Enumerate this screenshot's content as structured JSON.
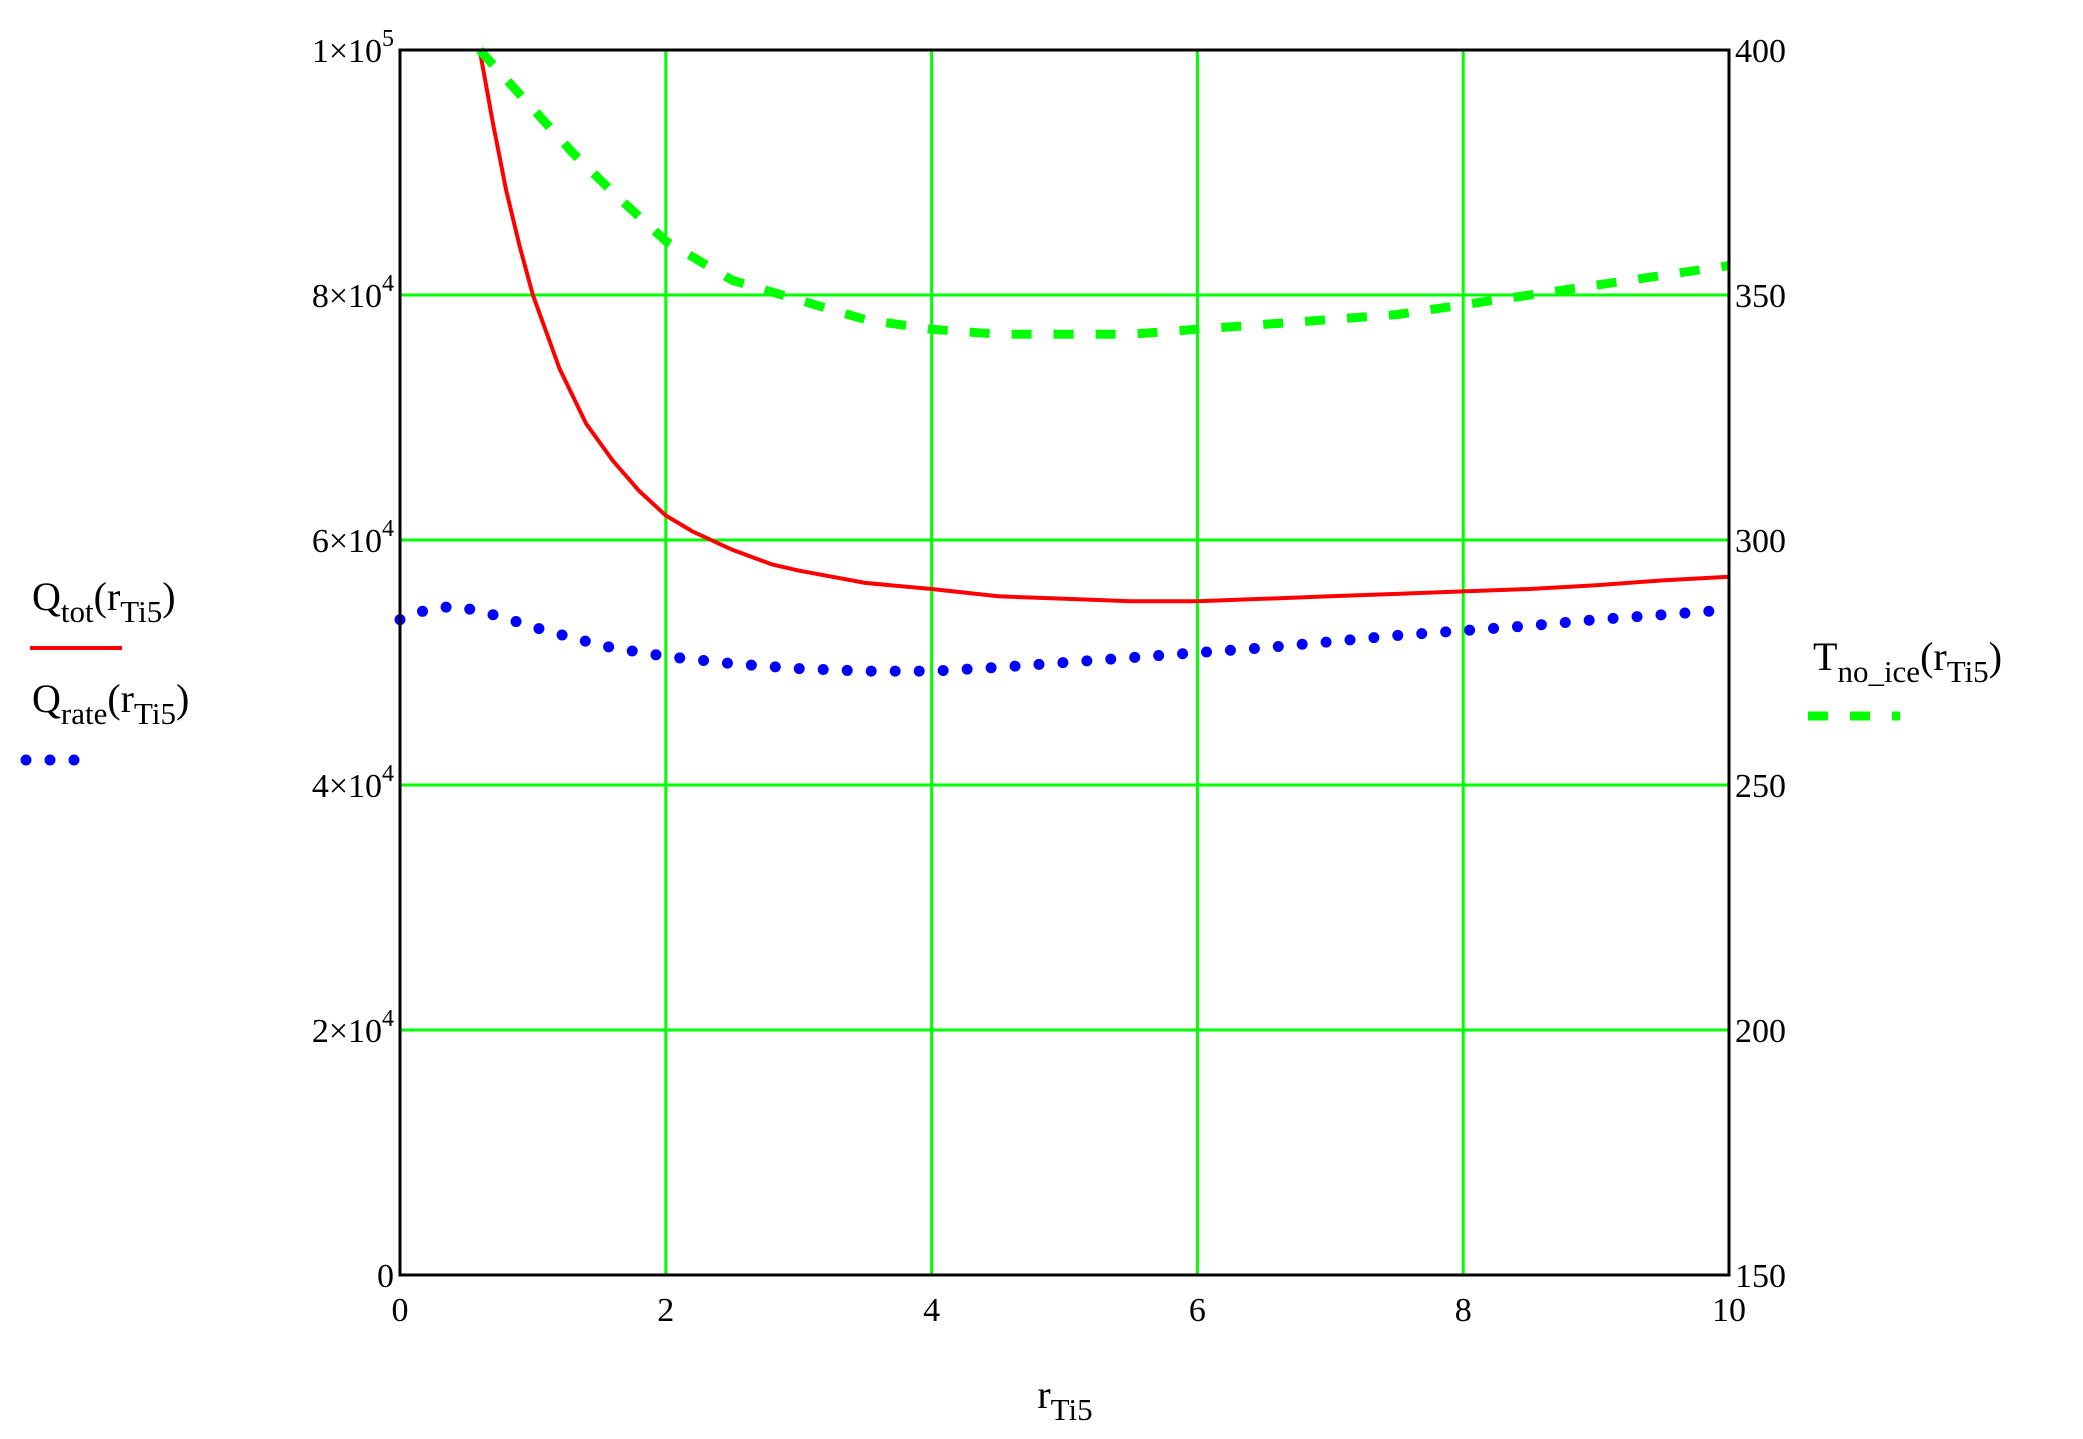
{
  "chart_data": {
    "type": "line",
    "xlabel": {
      "base": "r",
      "sub": "Ti5"
    },
    "xlim": [
      0,
      10
    ],
    "ylim_left": [
      0,
      100000
    ],
    "ylim_right": [
      150,
      400
    ],
    "grid": true,
    "x_ticks": [
      {
        "value": 0,
        "label": "0"
      },
      {
        "value": 2,
        "label": "2"
      },
      {
        "value": 4,
        "label": "4"
      },
      {
        "value": 6,
        "label": "6"
      },
      {
        "value": 8,
        "label": "8"
      },
      {
        "value": 10,
        "label": "10"
      }
    ],
    "y_left_ticks": [
      {
        "value": 0,
        "mant": "0",
        "exp": ""
      },
      {
        "value": 20000,
        "mant": "2×10",
        "exp": "4"
      },
      {
        "value": 40000,
        "mant": "4×10",
        "exp": "4"
      },
      {
        "value": 60000,
        "mant": "6×10",
        "exp": "4"
      },
      {
        "value": 80000,
        "mant": "8×10",
        "exp": "4"
      },
      {
        "value": 100000,
        "mant": "1×10",
        "exp": "5"
      }
    ],
    "y_right_ticks": [
      {
        "value": 150,
        "label": "150"
      },
      {
        "value": 200,
        "label": "200"
      },
      {
        "value": 250,
        "label": "250"
      },
      {
        "value": 300,
        "label": "300"
      },
      {
        "value": 350,
        "label": "350"
      },
      {
        "value": 400,
        "label": "400"
      }
    ],
    "series": [
      {
        "name": {
          "base": "Q",
          "sub": "tot",
          "arg": "r",
          "argsub": "Ti5"
        },
        "axis": "left",
        "color": "#ff0000",
        "style": "solid",
        "x": [
          0.6,
          0.7,
          0.8,
          0.9,
          1.0,
          1.2,
          1.4,
          1.6,
          1.8,
          2.0,
          2.2,
          2.5,
          2.8,
          3.0,
          3.5,
          4.0,
          4.5,
          5.0,
          5.5,
          6.0,
          6.5,
          7.0,
          7.5,
          8.0,
          8.5,
          9.0,
          9.5,
          10.0
        ],
        "y": [
          100000,
          94000,
          88500,
          84000,
          80000,
          74000,
          69500,
          66500,
          64000,
          62000,
          60700,
          59200,
          58000,
          57500,
          56500,
          56000,
          55400,
          55200,
          55000,
          55000,
          55200,
          55400,
          55600,
          55800,
          56000,
          56300,
          56700,
          57000
        ]
      },
      {
        "name": {
          "base": "Q",
          "sub": "rate",
          "arg": "r",
          "argsub": "Ti5"
        },
        "axis": "left",
        "color": "#0000ff",
        "style": "dotted",
        "x": [
          0.0,
          0.2,
          0.4,
          0.6,
          0.8,
          1.0,
          1.3,
          1.6,
          2.0,
          2.5,
          3.0,
          3.5,
          4.0,
          4.5,
          5.0,
          5.5,
          6.0,
          6.5,
          7.0,
          7.5,
          8.0,
          8.5,
          9.0,
          9.5,
          10.0
        ],
        "y": [
          53500,
          54300,
          54600,
          54200,
          53600,
          52900,
          52000,
          51200,
          50500,
          49900,
          49500,
          49300,
          49300,
          49600,
          50000,
          50400,
          50800,
          51200,
          51700,
          52200,
          52600,
          53000,
          53500,
          53900,
          54300
        ]
      },
      {
        "name": {
          "base": "T",
          "sub": "no_ice",
          "arg": "r",
          "argsub": "Ti5"
        },
        "axis": "right",
        "color": "#00ff00",
        "style": "dashed",
        "x": [
          0.6,
          0.8,
          1.0,
          1.3,
          1.6,
          2.0,
          2.5,
          3.0,
          3.5,
          4.0,
          4.5,
          5.0,
          5.5,
          6.0,
          6.5,
          7.0,
          7.5,
          8.0,
          8.5,
          9.0,
          9.5,
          10.0
        ],
        "y": [
          400,
          394,
          388,
          379,
          371,
          361,
          353,
          349,
          345,
          343,
          342,
          342,
          342,
          343,
          344,
          345,
          346,
          348,
          350,
          352,
          354,
          356
        ]
      }
    ]
  }
}
